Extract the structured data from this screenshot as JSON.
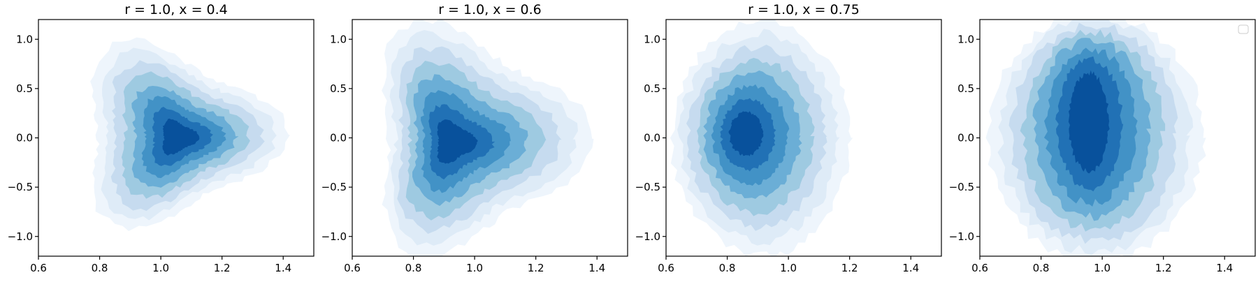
{
  "figure": {
    "background": "#ffffff",
    "colormap": "Blues",
    "level_colors": [
      "#eef5fc",
      "#deebf7",
      "#c6dbef",
      "#9ecae1",
      "#6baed6",
      "#4292c6",
      "#2171b5",
      "#08519c"
    ]
  },
  "chart_data": [
    {
      "type": "contour",
      "title": "r = 1.0, x = 0.4",
      "xlabel": "",
      "ylabel": "",
      "xlim": [
        0.6,
        1.5
      ],
      "ylim": [
        -1.2,
        1.2
      ],
      "xticks": [
        0.6,
        0.8,
        1.0,
        1.2,
        1.4
      ],
      "yticks": [
        -1.0,
        -0.5,
        0.0,
        0.5,
        1.0
      ],
      "xtick_labels": [
        "0.6",
        "0.8",
        "1.0",
        "1.2",
        "1.4"
      ],
      "ytick_labels": [
        "−1.0",
        "−0.5",
        "0.0",
        "0.5",
        "1.0"
      ],
      "grid": false,
      "density": {
        "shape": "triangle",
        "outer_extent": {
          "x": [
            0.74,
            1.33
          ],
          "y": [
            -0.8,
            0.86
          ]
        },
        "peak": {
          "x": 1.06,
          "y": 0.0
        },
        "levels": 8
      }
    },
    {
      "type": "contour",
      "title": "r = 1.0, x = 0.6",
      "xlabel": "",
      "ylabel": "",
      "xlim": [
        0.6,
        1.5
      ],
      "ylim": [
        -1.2,
        1.2
      ],
      "xticks": [
        0.6,
        0.8,
        1.0,
        1.2,
        1.4
      ],
      "yticks": [
        -1.0,
        -0.5,
        0.0,
        0.5,
        1.0
      ],
      "xtick_labels": [
        "0.6",
        "0.8",
        "1.0",
        "1.2",
        "1.4"
      ],
      "ytick_labels": [
        "−1.0",
        "−0.5",
        "0.0",
        "0.5",
        "1.0"
      ],
      "grid": false,
      "density": {
        "shape": "triangle",
        "outer_extent": {
          "x": [
            0.66,
            1.3
          ],
          "y": [
            -1.05,
            1.03
          ]
        },
        "peak": {
          "x": 0.92,
          "y": -0.05
        },
        "levels": 8
      }
    },
    {
      "type": "contour",
      "title": "r = 1.0, x = 0.75",
      "xlabel": "",
      "ylabel": "",
      "xlim": [
        0.6,
        1.5
      ],
      "ylim": [
        -1.2,
        1.2
      ],
      "xticks": [
        0.6,
        0.8,
        1.0,
        1.2,
        1.4
      ],
      "yticks": [
        -1.0,
        -0.5,
        0.0,
        0.5,
        1.0
      ],
      "xtick_labels": [
        "0.6",
        "0.8",
        "1.0",
        "1.2",
        "1.4"
      ],
      "ytick_labels": [
        "−1.0",
        "−0.5",
        "0.0",
        "0.5",
        "1.0"
      ],
      "grid": false,
      "density": {
        "shape": "half-ellipse",
        "outer_extent": {
          "x": [
            0.62,
            1.26
          ],
          "y": [
            -1.2,
            1.2
          ]
        },
        "peak": {
          "x": 0.85,
          "y": 0.05
        },
        "levels": 8
      }
    },
    {
      "type": "contour",
      "title": "",
      "xlabel": "",
      "ylabel": "",
      "xlim": [
        0.6,
        1.5
      ],
      "ylim": [
        -1.2,
        1.2
      ],
      "xticks": [
        0.6,
        0.8,
        1.0,
        1.2,
        1.4
      ],
      "yticks": [
        -1.0,
        -0.5,
        0.0,
        0.5,
        1.0
      ],
      "xtick_labels": [
        "0.6",
        "0.8",
        "1.0",
        "1.2",
        "1.4"
      ],
      "ytick_labels": [
        "−1.0",
        "−0.5",
        "0.0",
        "0.5",
        "1.0"
      ],
      "grid": false,
      "legend": {
        "placement": "top-right",
        "entries": []
      },
      "density": {
        "shape": "vertical-band",
        "outer_extent": {
          "x": [
            0.63,
            1.33
          ],
          "y": [
            -1.2,
            1.2
          ]
        },
        "peak": {
          "x": 0.95,
          "y": 0.2
        },
        "levels": 8
      }
    }
  ]
}
